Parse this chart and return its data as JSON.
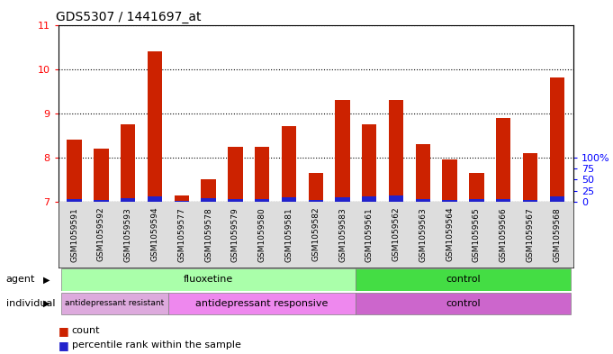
{
  "title": "GDS5307 / 1441697_at",
  "samples": [
    "GSM1059591",
    "GSM1059592",
    "GSM1059593",
    "GSM1059594",
    "GSM1059577",
    "GSM1059578",
    "GSM1059579",
    "GSM1059580",
    "GSM1059581",
    "GSM1059582",
    "GSM1059583",
    "GSM1059561",
    "GSM1059562",
    "GSM1059563",
    "GSM1059564",
    "GSM1059565",
    "GSM1059566",
    "GSM1059567",
    "GSM1059568"
  ],
  "counts": [
    8.4,
    8.2,
    8.75,
    10.4,
    7.15,
    7.5,
    8.25,
    8.25,
    8.7,
    7.65,
    9.3,
    8.75,
    9.3,
    8.3,
    7.95,
    7.65,
    8.9,
    8.1,
    9.8
  ],
  "percentiles": [
    0.07,
    0.05,
    0.08,
    0.12,
    0.03,
    0.09,
    0.06,
    0.07,
    0.1,
    0.05,
    0.11,
    0.12,
    0.14,
    0.06,
    0.05,
    0.06,
    0.07,
    0.05,
    0.12
  ],
  "bar_base": 7.0,
  "ylim_min": 7.0,
  "ylim_max": 11.0,
  "yticks_left": [
    7,
    8,
    9,
    10,
    11
  ],
  "yticks_right": [
    7.0,
    7.25,
    7.5,
    7.75,
    8.0
  ],
  "right_ytick_labels": [
    "0",
    "25",
    "50",
    "75",
    "100%"
  ],
  "agent_groups": [
    {
      "label": "fluoxetine",
      "start": 0,
      "end": 10,
      "color": "#aaffaa"
    },
    {
      "label": "control",
      "start": 11,
      "end": 18,
      "color": "#44dd44"
    }
  ],
  "individual_groups": [
    {
      "label": "antidepressant resistant",
      "start": 0,
      "end": 3,
      "color": "#ddaadd"
    },
    {
      "label": "antidepressant responsive",
      "start": 4,
      "end": 10,
      "color": "#ee88ee"
    },
    {
      "label": "control",
      "start": 11,
      "end": 18,
      "color": "#cc66cc"
    }
  ],
  "bar_color": "#cc2200",
  "percentile_color": "#2222cc",
  "bar_width": 0.55,
  "grid_color": "#000000",
  "bg_color": "#dddddd",
  "plot_bg": "#ffffff",
  "title_fontsize": 10,
  "tick_label_fontsize": 6.5,
  "legend_fontsize": 8
}
